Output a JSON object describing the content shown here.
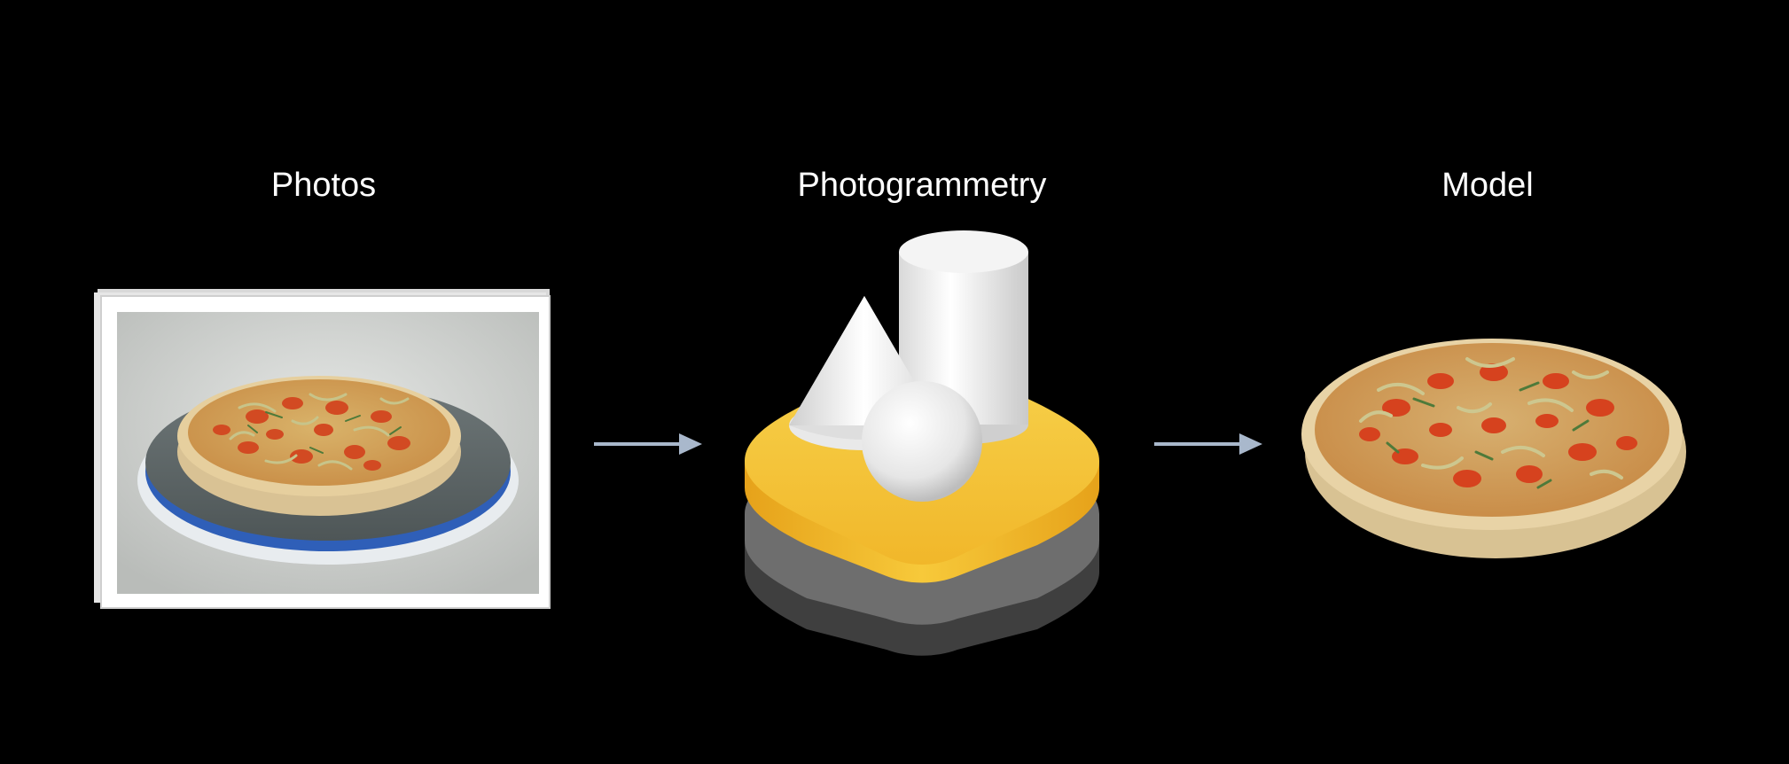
{
  "stages": {
    "photos": {
      "label": "Photos",
      "icon": "photo-stack-icon"
    },
    "photogrammetry": {
      "label": "Photogrammetry",
      "icon": "reality-composer-icon"
    },
    "model": {
      "label": "Model",
      "icon": "pizza-model-icon"
    }
  },
  "connectors": [
    {
      "from": "Photos",
      "to": "Photogrammetry",
      "icon": "arrow-right-icon"
    },
    {
      "from": "Photogrammetry",
      "to": "Model",
      "icon": "arrow-right-icon"
    }
  ],
  "colors": {
    "background": "#000000",
    "text": "#ffffff",
    "arrow": "#a9b8cc",
    "base_yellow": "#f4c534",
    "base_gray": "#6b6b6b",
    "pizza_sauce": "#d6421e",
    "pizza_crust": "#e8d3a6"
  }
}
